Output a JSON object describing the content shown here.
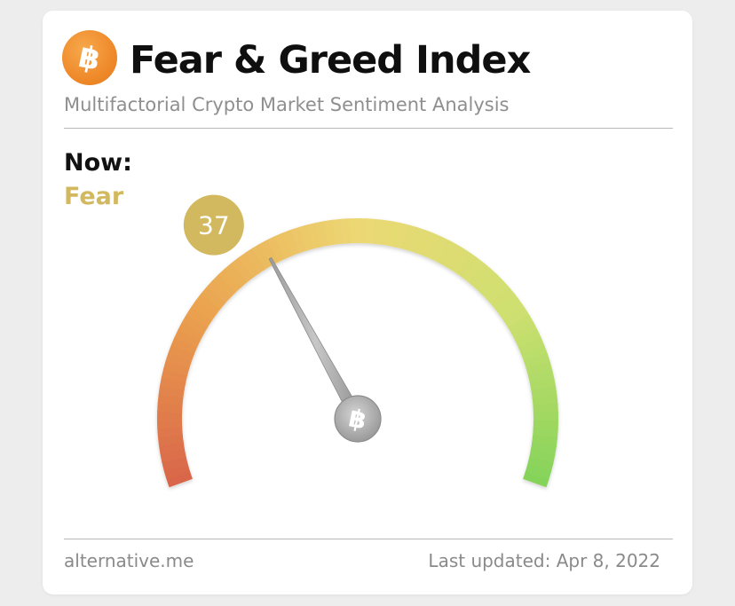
{
  "header": {
    "logo_icon": "bitcoin-icon",
    "title": "Fear & Greed Index",
    "subtitle": "Multifactorial Crypto Market Sentiment Analysis"
  },
  "now": {
    "label": "Now:",
    "classification": "Fear",
    "value": "37",
    "value_number": 37,
    "scale_min": 0,
    "scale_max": 100
  },
  "gauge": {
    "colors": {
      "extreme_fear": "#d9654a",
      "fear": "#eba34f",
      "neutral": "#ecd874",
      "greed": "#cfe070",
      "extreme_greed": "#84d35a",
      "value_badge": "#d2b85f",
      "classification_text": "#d2b85f"
    },
    "hub_icon": "bitcoin-icon"
  },
  "footer": {
    "source": "alternative.me",
    "updated": "Last updated: Apr 8, 2022"
  }
}
